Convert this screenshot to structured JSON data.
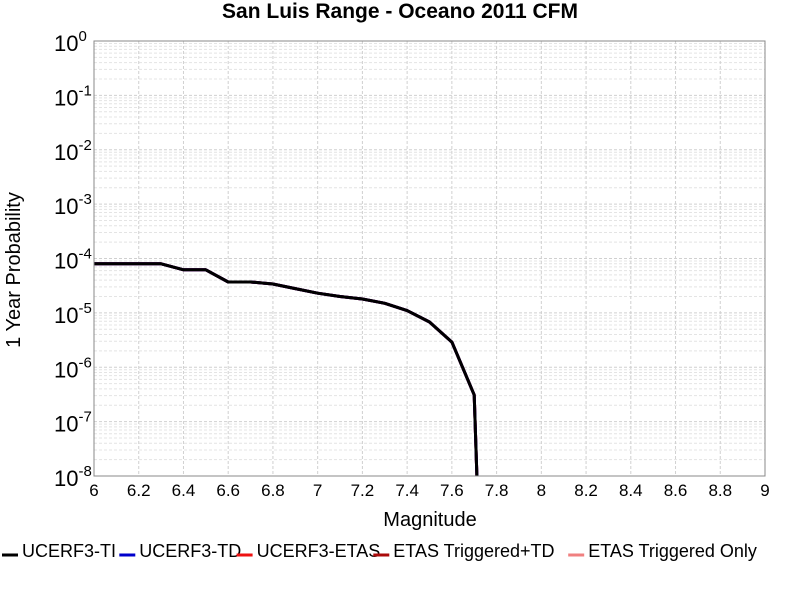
{
  "chart_data": {
    "type": "line",
    "title": "San Luis Range - Oceano 2011 CFM",
    "xlabel": "Magnitude",
    "ylabel": "1 Year Probability",
    "x": [
      6.0,
      6.1,
      6.2,
      6.3,
      6.4,
      6.5,
      6.6,
      6.7,
      6.8,
      6.9,
      7.0,
      7.1,
      7.2,
      7.3,
      7.4,
      7.5,
      7.6,
      7.7,
      7.72
    ],
    "series": [
      {
        "name": "UCERF3-TI",
        "color": "#000000",
        "values": [
          8e-05,
          8e-05,
          8e-05,
          8e-05,
          6.2e-05,
          6.2e-05,
          3.7e-05,
          3.7e-05,
          3.4e-05,
          2.8e-05,
          2.3e-05,
          2e-05,
          1.8e-05,
          1.5e-05,
          1.1e-05,
          6.8e-06,
          2.9e-06,
          3.1e-07,
          1e-09
        ]
      },
      {
        "name": "UCERF3-TD",
        "color": "#0000cc",
        "values": [
          8e-05,
          8e-05,
          8e-05,
          8e-05,
          6.2e-05,
          6.2e-05,
          3.7e-05,
          3.7e-05,
          3.4e-05,
          2.8e-05,
          2.3e-05,
          2e-05,
          1.8e-05,
          1.5e-05,
          1.1e-05,
          6.8e-06,
          2.9e-06,
          3.1e-07,
          1e-09
        ]
      },
      {
        "name": "UCERF3-ETAS",
        "color": "#ee1111",
        "values": [
          8e-05,
          8e-05,
          8e-05,
          8e-05,
          6.2e-05,
          6.2e-05,
          3.7e-05,
          3.7e-05,
          3.4e-05,
          2.8e-05,
          2.3e-05,
          2e-05,
          1.8e-05,
          1.5e-05,
          1.1e-05,
          6.8e-06,
          2.9e-06,
          3.1e-07,
          1e-09
        ]
      },
      {
        "name": "ETAS Triggered+TD",
        "color": "#aa0a0a",
        "values": [
          8e-05,
          8e-05,
          8e-05,
          8e-05,
          6.2e-05,
          6.2e-05,
          3.7e-05,
          3.7e-05,
          3.4e-05,
          2.8e-05,
          2.3e-05,
          2e-05,
          1.8e-05,
          1.5e-05,
          1.1e-05,
          6.8e-06,
          2.9e-06,
          3.1e-07,
          1e-09
        ]
      },
      {
        "name": "ETAS Triggered Only",
        "color": "#f08080",
        "values": [
          null,
          null,
          null,
          null,
          null,
          null,
          null,
          null,
          null,
          null,
          null,
          null,
          null,
          null,
          null,
          null,
          null,
          null,
          null
        ]
      }
    ],
    "xlim": [
      6,
      9
    ],
    "xticks": [
      6,
      6.2,
      6.4,
      6.6,
      6.8,
      7,
      7.2,
      7.4,
      7.6,
      7.8,
      8,
      8.2,
      8.4,
      8.6,
      8.8,
      9
    ],
    "ylim": [
      1e-08,
      1
    ],
    "yticks": [
      {
        "value": 1,
        "label": "10^0"
      },
      {
        "value": 0.1,
        "label": "10^-1"
      },
      {
        "value": 0.01,
        "label": "10^-2"
      },
      {
        "value": 0.001,
        "label": "10^-3"
      },
      {
        "value": 0.0001,
        "label": "10^-4"
      },
      {
        "value": 1e-05,
        "label": "10^-5"
      },
      {
        "value": 1e-06,
        "label": "10^-6"
      },
      {
        "value": 1e-07,
        "label": "10^-7"
      },
      {
        "value": 1e-08,
        "label": "10^-8"
      }
    ],
    "log_y": true,
    "grid": true,
    "legend": "bottom"
  }
}
